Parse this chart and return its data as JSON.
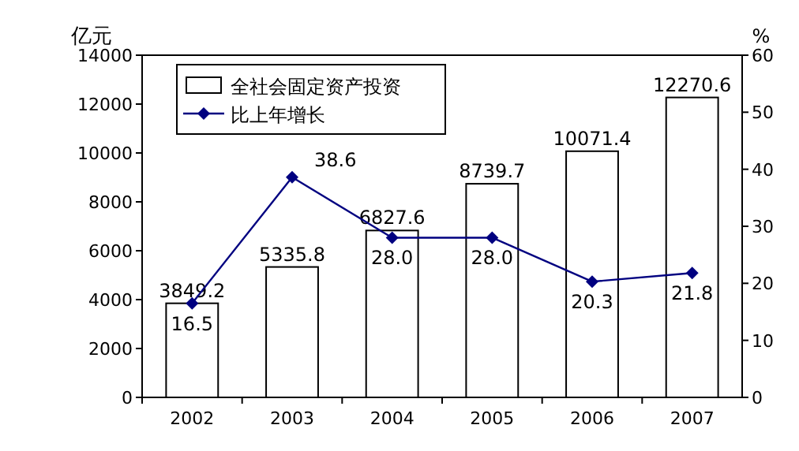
{
  "chart_data": {
    "type": "bar",
    "categories": [
      "2002",
      "2003",
      "2004",
      "2005",
      "2006",
      "2007"
    ],
    "series": [
      {
        "name": "全社会固定资产投资",
        "color": "#ffffff",
        "values": [
          3849.2,
          5335.8,
          6827.6,
          8739.7,
          10071.4,
          12270.6
        ]
      },
      {
        "name": "比上年增长",
        "type": "line",
        "axis": "y2",
        "color": "#000080",
        "values": [
          16.5,
          38.6,
          28.0,
          28.0,
          20.3,
          21.8
        ],
        "value_labels": [
          "16.5",
          "38.6",
          "28.0",
          "28.0",
          "20.3",
          "21.8"
        ]
      }
    ],
    "ylabel": "亿元",
    "y2label": "%",
    "ylim": [
      0,
      14000
    ],
    "yticks": [
      0,
      2000,
      4000,
      6000,
      8000,
      10000,
      12000,
      14000
    ],
    "y2lim": [
      0,
      60
    ],
    "y2ticks": [
      0,
      10,
      20,
      30,
      40,
      50,
      60
    ],
    "marker": "diamond",
    "legend": "top left",
    "data_labels": true
  }
}
